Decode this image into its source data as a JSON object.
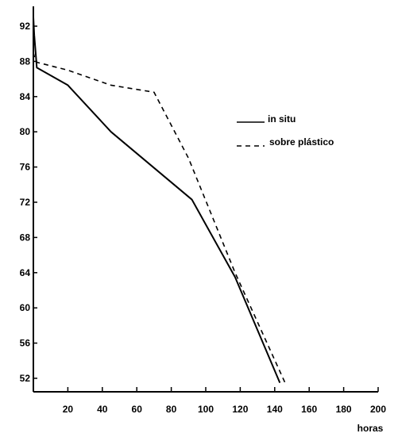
{
  "chart_data": {
    "type": "line",
    "title": "",
    "xlabel": "horas",
    "ylabel": "",
    "xlim": [
      0,
      200
    ],
    "ylim": [
      50,
      93
    ],
    "grid": false,
    "legend_position": "right",
    "x_ticks": [
      "20",
      "40",
      "60",
      "80",
      "100",
      "120",
      "140",
      "160",
      "180",
      "200"
    ],
    "y_ticks": [
      "92",
      "88",
      "84",
      "80",
      "76",
      "72",
      "68",
      "64",
      "60",
      "56",
      "52"
    ],
    "series": [
      {
        "name": "in situ",
        "style": "solid",
        "color": "#000000",
        "x": [
          0,
          0.5,
          1.5,
          2,
          20,
          45,
          92,
          117,
          143
        ],
        "y": [
          93,
          91,
          88.5,
          87.3,
          85.3,
          80,
          72.3,
          63.5,
          51.5
        ]
      },
      {
        "name": "sobre plástico",
        "style": "dashed",
        "color": "#000000",
        "x": [
          0,
          1,
          2,
          20,
          45,
          70,
          90,
          117,
          146
        ],
        "y": [
          89,
          88.2,
          87.9,
          87,
          85.3,
          84.5,
          77,
          64,
          51.5
        ]
      }
    ]
  }
}
